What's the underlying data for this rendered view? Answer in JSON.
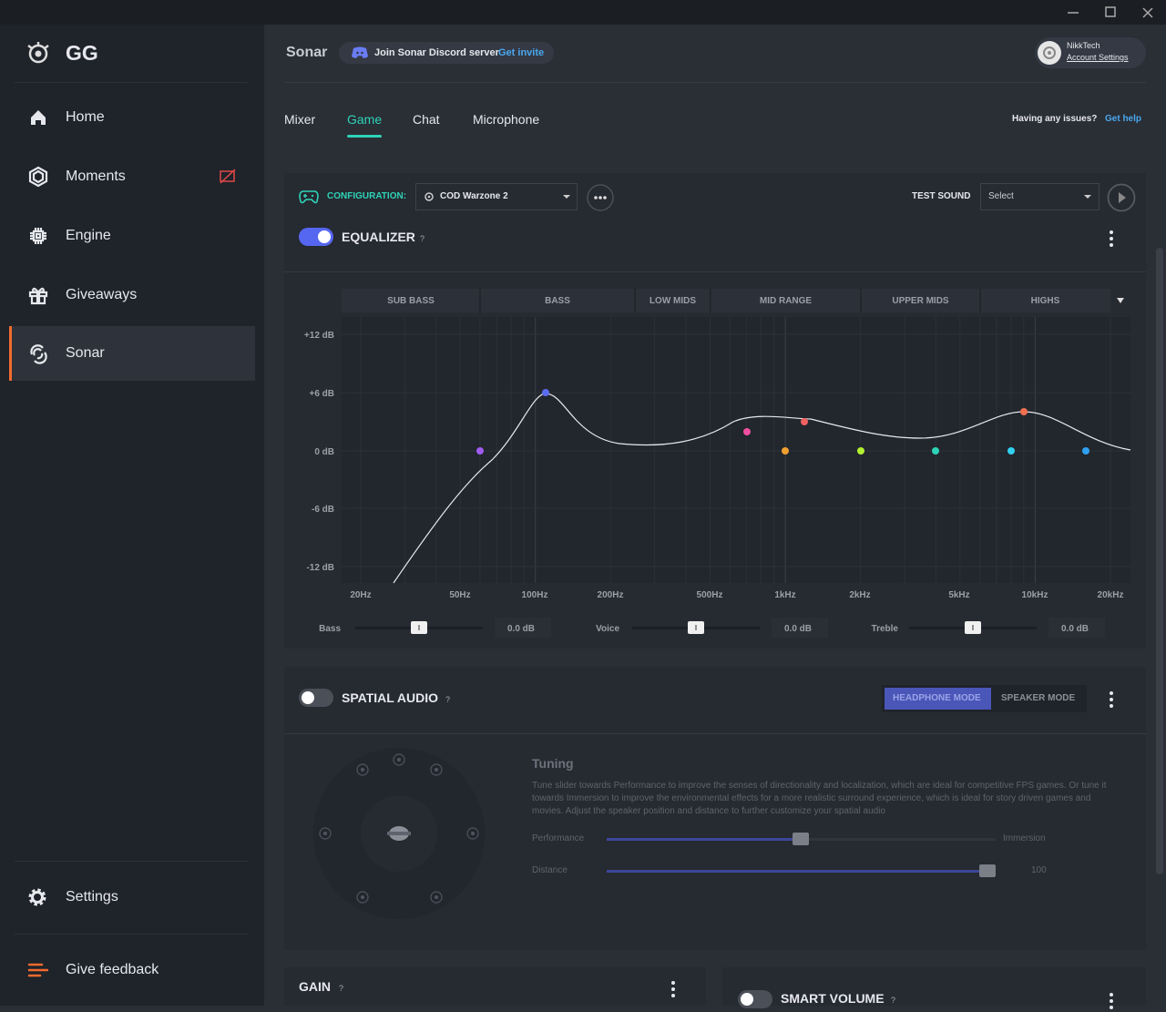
{
  "sidebar": {
    "logo": "GG",
    "nav": [
      "Home",
      "Moments",
      "Engine",
      "Giveaways",
      "Sonar"
    ],
    "bottom": [
      "Settings",
      "Give feedback"
    ]
  },
  "header": {
    "title": "Sonar",
    "discord": "Join Sonar Discord server",
    "invite": "Get invite",
    "account_name": "NikkTech",
    "account_settings": "Account Settings"
  },
  "tabs": [
    "Mixer",
    "Game",
    "Chat",
    "Microphone"
  ],
  "help": {
    "question": "Having any issues?",
    "link": "Get help"
  },
  "config": {
    "label": "CONFIGURATION:",
    "value": "COD Warzone 2",
    "test_sound": "TEST SOUND",
    "select": "Select"
  },
  "equalizer": {
    "title": "EQUALIZER",
    "help": "?",
    "bands": [
      "SUB BASS",
      "BASS",
      "LOW MIDS",
      "MID RANGE",
      "UPPER MIDS",
      "HIGHS"
    ],
    "db_labels": [
      "+12 dB",
      "+6 dB",
      "0 dB",
      "-6 dB",
      "-12 dB"
    ],
    "freq_labels": [
      "20Hz",
      "50Hz",
      "100Hz",
      "200Hz",
      "500Hz",
      "1kHz",
      "2kHz",
      "5kHz",
      "10kHz",
      "20kHz"
    ],
    "sliders": [
      {
        "label": "Bass",
        "value": "0.0 dB"
      },
      {
        "label": "Voice",
        "value": "0.0 dB"
      },
      {
        "label": "Treble",
        "value": "0.0 dB"
      }
    ]
  },
  "spatial": {
    "title": "SPATIAL AUDIO",
    "help": "?",
    "modes": [
      "HEADPHONE MODE",
      "SPEAKER MODE"
    ],
    "tuning_title": "Tuning",
    "tuning_text": "Tune slider towards Performance to improve the senses of directionality and localization, which are ideal for competitive FPS games. Or tune it towards Immersion to improve the environmental effects for a more realistic surround experience, which is ideal for story driven games and movies. Adjust the speaker position and distance to further customize your spatial audio",
    "performance": "Performance",
    "immersion": "Immersion",
    "distance": "Distance",
    "distance_value": "100"
  },
  "gain": {
    "title": "GAIN",
    "help": "?"
  },
  "smart_volume": {
    "title": "SMART VOLUME",
    "help": "?"
  }
}
